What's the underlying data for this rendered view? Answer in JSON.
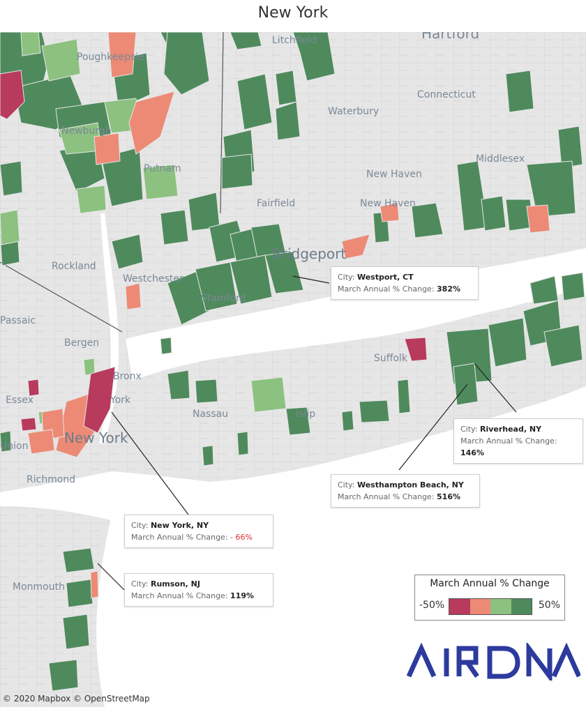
{
  "title": "New York",
  "place_labels": [
    {
      "name": "hartford",
      "text": "Hartford"
    },
    {
      "name": "litchfield",
      "text": "Litchfield"
    },
    {
      "name": "poughkeepsie",
      "text": "Poughkeepsie"
    },
    {
      "name": "connecticut",
      "text": "Connecticut"
    },
    {
      "name": "waterbury",
      "text": "Waterbury"
    },
    {
      "name": "newburgh",
      "text": "Newburgh"
    },
    {
      "name": "putnam",
      "text": "Putnam"
    },
    {
      "name": "new-haven-county",
      "text": "New Haven"
    },
    {
      "name": "middlesex",
      "text": "Middlesex"
    },
    {
      "name": "fairfield",
      "text": "Fairfield"
    },
    {
      "name": "new-haven-city",
      "text": "New Haven"
    },
    {
      "name": "bridgeport",
      "text": "Bridgeport"
    },
    {
      "name": "rockland",
      "text": "Rockland"
    },
    {
      "name": "westchester",
      "text": "Westchester"
    },
    {
      "name": "stamford",
      "text": "Stamford"
    },
    {
      "name": "passaic",
      "text": "Passaic"
    },
    {
      "name": "bergen",
      "text": "Bergen"
    },
    {
      "name": "suffolk",
      "text": "Suffolk"
    },
    {
      "name": "bronx",
      "text": "Bronx"
    },
    {
      "name": "essex",
      "text": "Essex"
    },
    {
      "name": "york",
      "text": "York"
    },
    {
      "name": "nassau",
      "text": "Nassau"
    },
    {
      "name": "islip",
      "text": "Islip"
    },
    {
      "name": "union",
      "text": "Union"
    },
    {
      "name": "new-york-city",
      "text": "New York"
    },
    {
      "name": "richmond",
      "text": "Richmond"
    },
    {
      "name": "monmouth",
      "text": "Monmouth"
    }
  ],
  "callouts": [
    {
      "city_label": "City:",
      "city": "Westport, CT",
      "metric_label": "March Annual % Change:",
      "value": "382%"
    },
    {
      "city_label": "City:",
      "city": "Riverhead, NY",
      "metric_label": "March Annual % Change:",
      "value": "146%"
    },
    {
      "city_label": "City:",
      "city": "Westhampton Beach, NY",
      "metric_label": "March Annual % Change:",
      "value": "516%"
    },
    {
      "city_label": "City:",
      "city": "New York, NY",
      "metric_label": "March Annual % Change:",
      "value": "- 66%"
    },
    {
      "city_label": "City:",
      "city": "Rumson, NJ",
      "metric_label": "March Annual % Change:",
      "value": "119%"
    }
  ],
  "legend": {
    "title": "March Annual % Change",
    "min_label": "-50%",
    "max_label": "50%",
    "colors": [
      "#b83a5c",
      "#ec8a76",
      "#8cc180",
      "#4f8a5d"
    ]
  },
  "colors": {
    "strong_negative": "#b83a5c",
    "negative": "#ec8a76",
    "positive": "#8cc180",
    "strong_positive": "#4f8a5d",
    "water": "#ffffff",
    "land": "#e6e6e6",
    "brand": "#2d3a9e"
  },
  "logo_text": "AIRDNA",
  "attribution": "© 2020 Mapbox © OpenStreetMap"
}
